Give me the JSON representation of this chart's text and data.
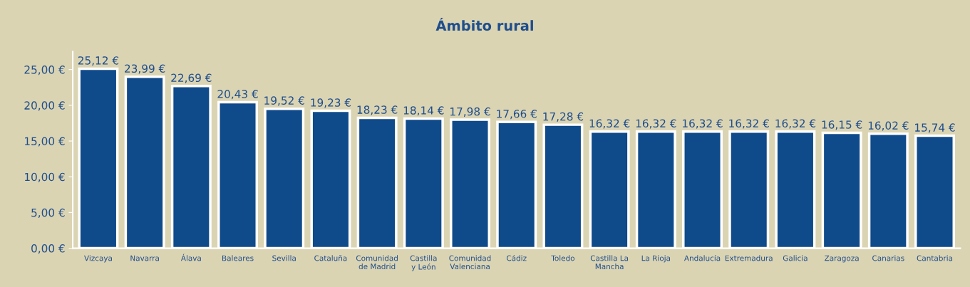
{
  "chart_data": {
    "type": "bar",
    "title": "Ámbito rural",
    "categories": [
      "Vizcaya",
      "Navarra",
      "Álava",
      "Baleares",
      "Sevilla",
      "Cataluña",
      "Comunidad\nde Madrid",
      "Castilla\ny León",
      "Comunidad\nValenciana",
      "Cádiz",
      "Toledo",
      "Castilla La\nMancha",
      "La Rioja",
      "Andalucía",
      "Extremadura",
      "Galicia",
      "Zaragoza",
      "Canarias",
      "Cantabria"
    ],
    "values": [
      25.12,
      23.99,
      22.69,
      20.43,
      19.52,
      19.23,
      18.23,
      18.14,
      17.98,
      17.66,
      17.28,
      16.32,
      16.32,
      16.32,
      16.32,
      16.32,
      16.15,
      16.02,
      15.74
    ],
    "value_labels": [
      "25,12 €",
      "23,99 €",
      "22,69 €",
      "20,43 €",
      "19,52 €",
      "19,23 €",
      "18,23 €",
      "18,14 €",
      "17,98 €",
      "17,66 €",
      "17,28 €",
      "16,32 €",
      "16,32 €",
      "16,32 €",
      "16,32 €",
      "16,32 €",
      "16,15 €",
      "16,02 €",
      "15,74 €"
    ],
    "color": "#0f4a8a",
    "ylim": [
      0,
      27.5
    ],
    "yticks": [
      {
        "value": 0,
        "label": "0,00 €"
      },
      {
        "value": 5,
        "label": "5,00 €"
      },
      {
        "value": 10,
        "label": "10,00 €"
      },
      {
        "value": 15,
        "label": "15,00 €"
      },
      {
        "value": 20,
        "label": "20,00 €"
      },
      {
        "value": 25,
        "label": "25,00 €"
      }
    ],
    "grid": false,
    "legend": false
  }
}
